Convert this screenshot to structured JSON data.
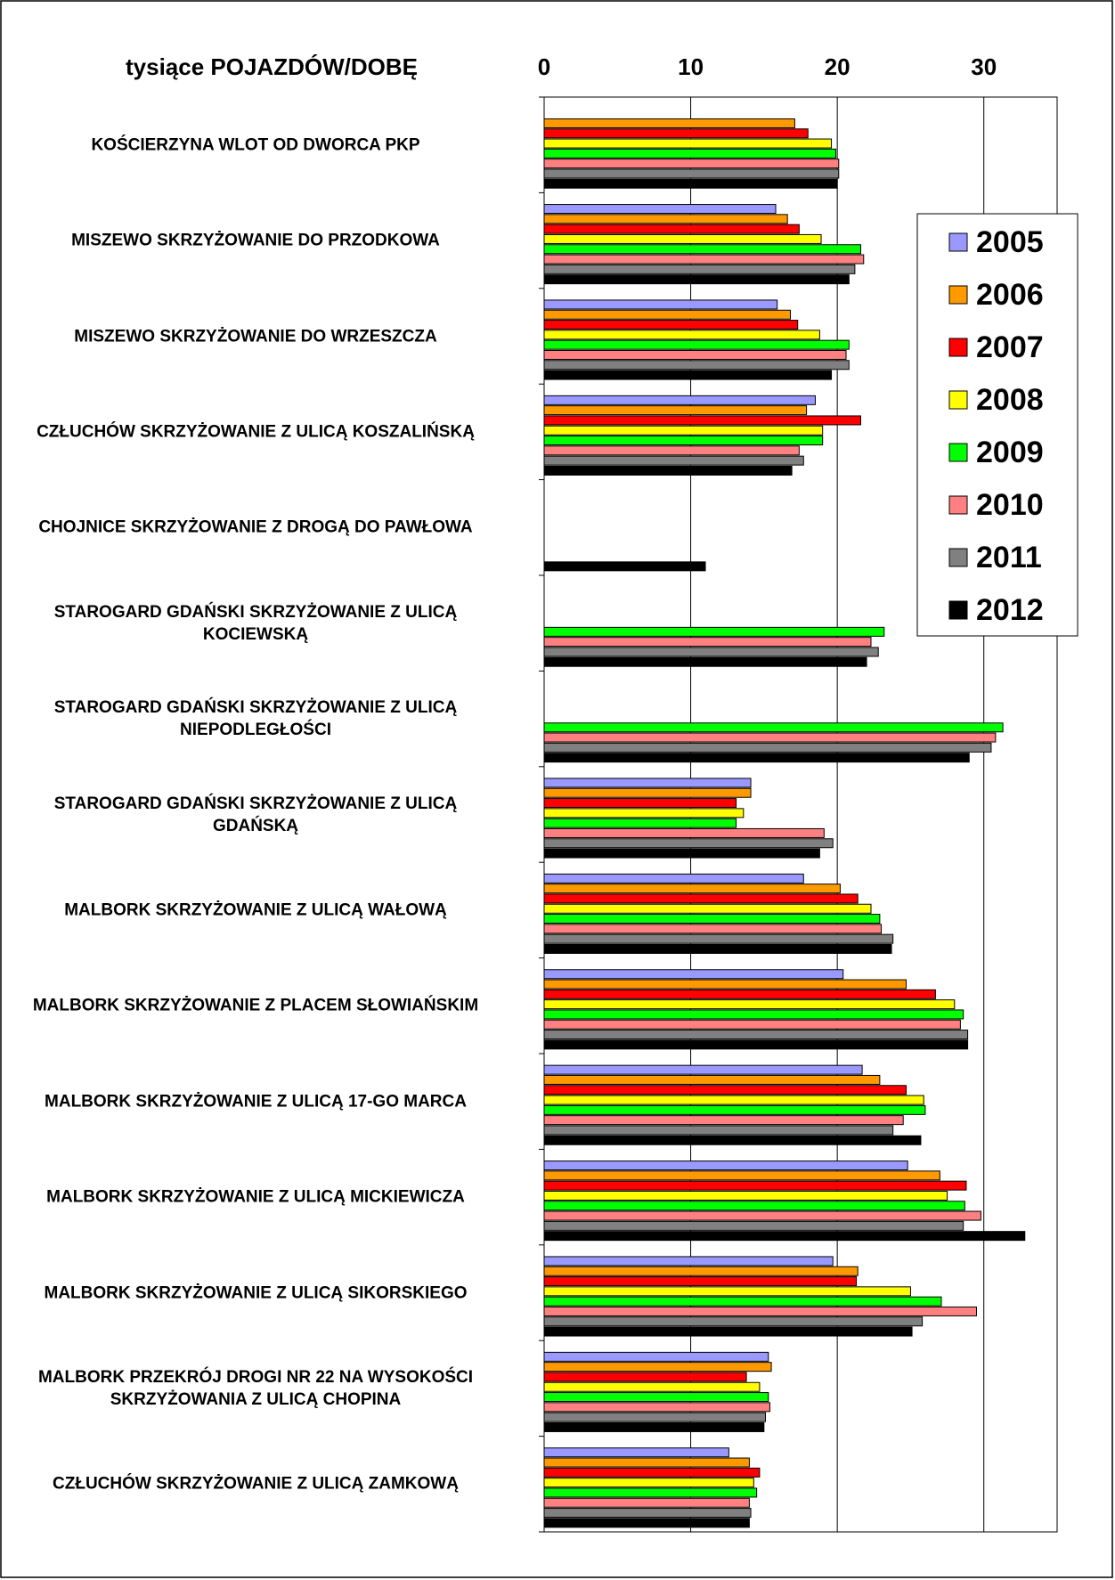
{
  "chart_data": {
    "type": "hbar",
    "title": "tysiące POJAZDÓW/DOBĘ",
    "categories": [
      "KOŚCIERZYNA WLOT OD DWORCA PKP",
      "MISZEWO SKRZYŻOWANIE DO PRZODKOWA",
      "MISZEWO SKRZYŻOWANIE DO WRZESZCZA",
      "CZŁUCHÓW SKRZYŻOWANIE Z ULICĄ KOSZALIŃSKĄ",
      "CHOJNICE SKRZYŻOWANIE Z DROGĄ DO PAWŁOWA",
      "STAROGARD GDAŃSKI SKRZYŻOWANIE Z ULICĄ\nKOCIEWSKĄ",
      "STAROGARD GDAŃSKI SKRZYŻOWANIE Z ULICĄ\nNIEPODLEGŁOŚCI",
      "STAROGARD GDAŃSKI SKRZYŻOWANIE Z ULICĄ\nGDAŃSKĄ",
      "MALBORK SKRZYŻOWANIE Z ULICĄ WAŁOWĄ",
      "MALBORK SKRZYŻOWANIE Z PLACEM SŁOWIAŃSKIM",
      "MALBORK SKRZYŻOWANIE Z ULICĄ 17-GO MARCA",
      "MALBORK SKRZYŻOWANIE Z ULICĄ MICKIEWICZA",
      "MALBORK SKRZYŻOWANIE Z ULICĄ SIKORSKIEGO",
      "MALBORK PRZEKRÓJ DROGI NR 22 NA WYSOKOŚCI\nSKRZYŻOWANIA Z ULICĄ CHOPINA",
      "CZŁUCHÓW SKRZYŻOWANIE Z ULICĄ ZAMKOWĄ"
    ],
    "series": [
      {
        "name": "2005",
        "color": "#9999ff",
        "values": [
          null,
          15.8,
          15.9,
          18.5,
          null,
          null,
          null,
          14.1,
          17.7,
          20.4,
          21.7,
          24.8,
          19.7,
          15.3,
          12.6
        ]
      },
      {
        "name": "2006",
        "color": "#ff9900",
        "values": [
          17.1,
          16.6,
          16.8,
          17.9,
          null,
          null,
          null,
          14.1,
          20.2,
          24.7,
          22.9,
          27.0,
          21.4,
          15.5,
          14.0
        ]
      },
      {
        "name": "2007",
        "color": "#ff0000",
        "values": [
          18.0,
          17.4,
          17.3,
          21.6,
          null,
          null,
          null,
          13.1,
          21.4,
          26.7,
          24.7,
          28.8,
          21.3,
          13.8,
          14.7
        ]
      },
      {
        "name": "2008",
        "color": "#ffff00",
        "values": [
          19.6,
          18.9,
          18.8,
          19.0,
          null,
          null,
          null,
          13.6,
          22.3,
          28.0,
          25.9,
          27.5,
          25.0,
          14.7,
          14.3
        ]
      },
      {
        "name": "2009",
        "color": "#00ff00",
        "values": [
          19.9,
          21.6,
          20.8,
          19.0,
          null,
          23.2,
          31.3,
          13.1,
          22.9,
          28.6,
          26.0,
          28.7,
          27.1,
          15.3,
          14.5
        ]
      },
      {
        "name": "2010",
        "color": "#ff8080",
        "values": [
          20.1,
          21.8,
          20.6,
          17.4,
          null,
          22.3,
          30.8,
          19.1,
          23.0,
          28.4,
          24.5,
          29.8,
          29.5,
          15.4,
          14.0
        ]
      },
      {
        "name": "2011",
        "color": "#808080",
        "values": [
          20.1,
          21.2,
          20.8,
          17.7,
          null,
          22.8,
          30.5,
          19.7,
          23.8,
          28.9,
          23.8,
          28.6,
          25.8,
          15.1,
          14.1
        ]
      },
      {
        "name": "2012",
        "color": "#000000",
        "values": [
          20.0,
          20.8,
          19.6,
          16.9,
          11.0,
          22.0,
          29.0,
          18.8,
          23.7,
          28.9,
          25.7,
          32.8,
          25.1,
          15.0,
          14.0
        ]
      }
    ],
    "xlim": [
      0,
      35
    ],
    "xticks": [
      0,
      10,
      20,
      30
    ],
    "grid": true,
    "legend": "right"
  }
}
